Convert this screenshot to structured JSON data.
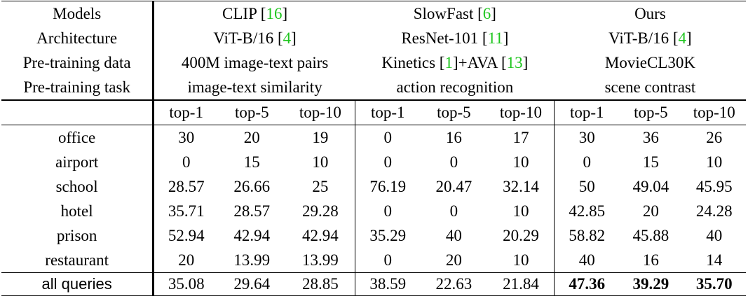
{
  "table": {
    "header_rows": [
      [
        [
          "Models"
        ],
        [
          "CLIP [",
          "16",
          "]"
        ],
        [
          "SlowFast [",
          "6",
          "]"
        ],
        [
          "Ours"
        ]
      ],
      [
        [
          "Architecture"
        ],
        [
          "ViT-B/16 [",
          "4",
          "]"
        ],
        [
          "ResNet-101 [",
          "11",
          "]"
        ],
        [
          "ViT-B/16 [",
          "4",
          "]"
        ]
      ],
      [
        [
          "Pre-training data"
        ],
        [
          "400M image-text pairs"
        ],
        [
          "Kinetics [",
          "1",
          "]+AVA [",
          "13",
          "]"
        ],
        [
          "MovieCL30K"
        ]
      ],
      [
        [
          "Pre-training task"
        ],
        [
          "image-text similarity"
        ],
        [
          "action recognition"
        ],
        [
          "scene contrast"
        ]
      ]
    ],
    "metric_columns": [
      "top-1",
      "top-5",
      "top-10",
      "top-1",
      "top-5",
      "top-10",
      "top-1",
      "top-5",
      "top-10"
    ],
    "rows": [
      {
        "label": "office",
        "values": [
          "30",
          "20",
          "19",
          "0",
          "16",
          "17",
          "30",
          "36",
          "26"
        ]
      },
      {
        "label": "airport",
        "values": [
          "0",
          "15",
          "10",
          "0",
          "0",
          "10",
          "0",
          "15",
          "10"
        ]
      },
      {
        "label": "school",
        "values": [
          "28.57",
          "26.66",
          "25",
          "76.19",
          "20.47",
          "32.14",
          "50",
          "49.04",
          "45.95"
        ]
      },
      {
        "label": "hotel",
        "values": [
          "35.71",
          "28.57",
          "29.28",
          "0",
          "0",
          "10",
          "42.85",
          "20",
          "24.28"
        ]
      },
      {
        "label": "prison",
        "values": [
          "52.94",
          "42.94",
          "42.94",
          "35.29",
          "40",
          "20.29",
          "58.82",
          "45.88",
          "40"
        ]
      },
      {
        "label": "restaurant",
        "values": [
          "20",
          "13.99",
          "13.99",
          "0",
          "20",
          "10",
          "40",
          "16",
          "14"
        ]
      }
    ],
    "total": {
      "label": "all queries",
      "values": [
        "35.08",
        "29.64",
        "28.85",
        "38.59",
        "22.63",
        "21.84",
        "47.36",
        "39.29",
        "35.70"
      ]
    }
  }
}
